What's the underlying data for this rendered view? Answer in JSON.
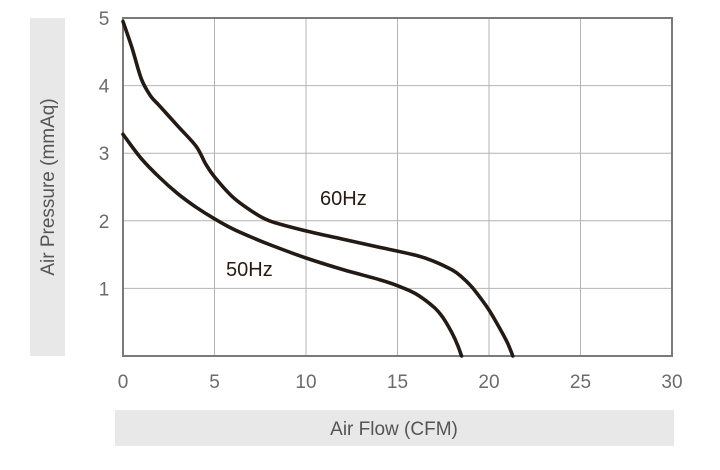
{
  "chart_data": {
    "type": "line",
    "xlabel": "Air Flow (CFM)",
    "ylabel": "Air Pressure (mmAq)",
    "xlim": [
      0,
      30
    ],
    "ylim": [
      0,
      5
    ],
    "xticks": [
      0,
      5,
      10,
      15,
      20,
      25,
      30
    ],
    "yticks": [
      1,
      2,
      3,
      4,
      5
    ],
    "xtick_labels": [
      "0",
      "5",
      "10",
      "15",
      "20",
      "25",
      "30"
    ],
    "ytick_labels": [
      "1",
      "2",
      "3",
      "4",
      "5"
    ],
    "grid": true,
    "legend": "none (series labeled inline)",
    "colors": {
      "series": "#231a14",
      "grid": "#b4b4b4",
      "frame": "#7a7a7a",
      "title_band": "#e8e8e8"
    },
    "series": [
      {
        "name": "60Hz",
        "x": [
          0,
          0.5,
          1,
          1.5,
          2,
          3,
          4,
          4.5,
          5,
          6,
          7,
          8,
          10,
          12,
          14,
          16,
          17,
          18,
          18.5,
          19,
          19.5,
          20,
          20.5,
          21,
          21.3
        ],
        "y": [
          4.95,
          4.55,
          4.1,
          3.85,
          3.7,
          3.4,
          3.1,
          2.85,
          2.65,
          2.35,
          2.15,
          2.0,
          1.85,
          1.73,
          1.61,
          1.49,
          1.4,
          1.27,
          1.17,
          1.04,
          0.87,
          0.68,
          0.45,
          0.2,
          0.0
        ]
      },
      {
        "name": "50Hz",
        "x": [
          0,
          1,
          2,
          3,
          4,
          5,
          6,
          7,
          8,
          10,
          12,
          14,
          15,
          16,
          17,
          17.5,
          18,
          18.3,
          18.5
        ],
        "y": [
          3.28,
          2.92,
          2.64,
          2.4,
          2.2,
          2.03,
          1.88,
          1.76,
          1.65,
          1.45,
          1.28,
          1.13,
          1.04,
          0.92,
          0.72,
          0.56,
          0.33,
          0.15,
          0.0
        ]
      }
    ]
  }
}
